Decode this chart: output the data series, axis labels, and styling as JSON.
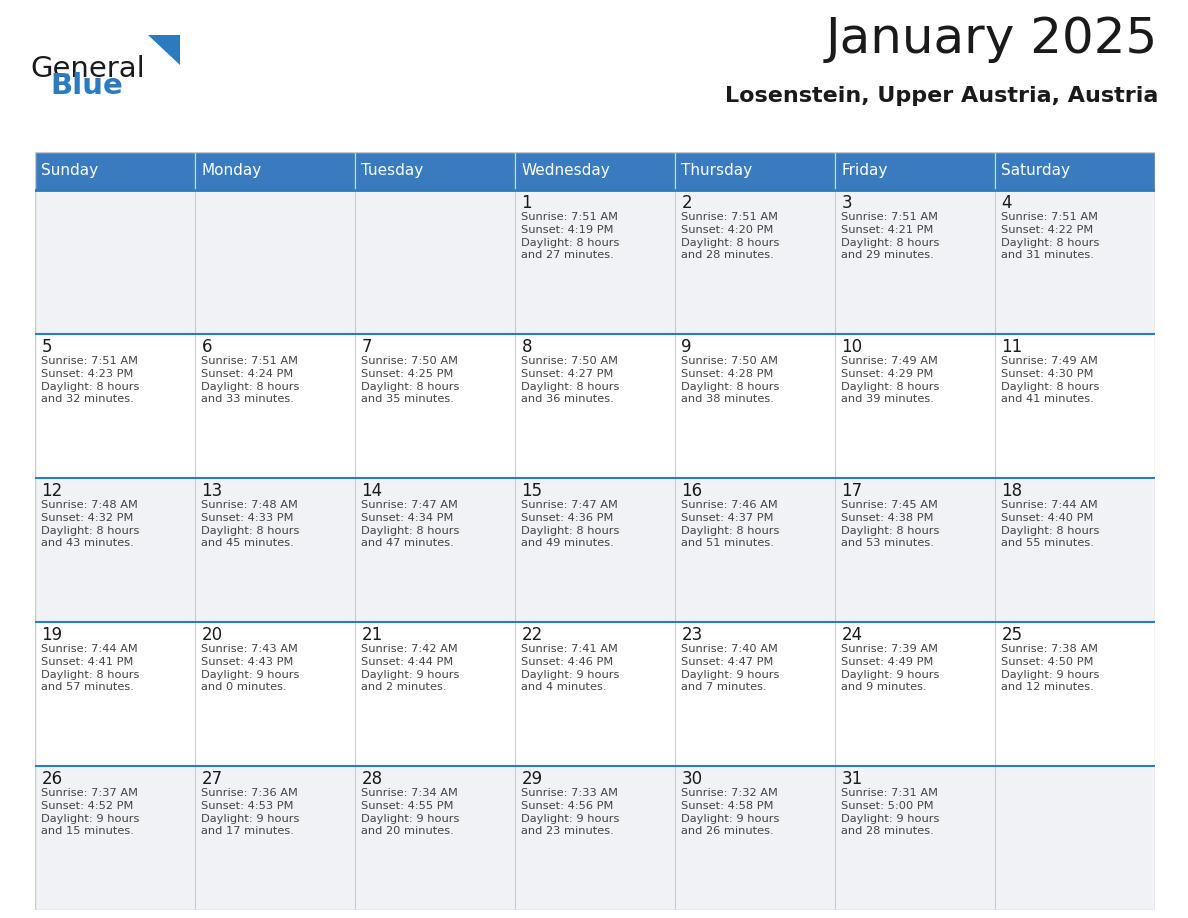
{
  "title": "January 2025",
  "subtitle": "Losenstein, Upper Austria, Austria",
  "header_color": "#3a7bbf",
  "header_text_color": "#ffffff",
  "day_names": [
    "Sunday",
    "Monday",
    "Tuesday",
    "Wednesday",
    "Thursday",
    "Friday",
    "Saturday"
  ],
  "weeks": [
    [
      {
        "day": "",
        "text": ""
      },
      {
        "day": "",
        "text": ""
      },
      {
        "day": "",
        "text": ""
      },
      {
        "day": "1",
        "text": "Sunrise: 7:51 AM\nSunset: 4:19 PM\nDaylight: 8 hours\nand 27 minutes."
      },
      {
        "day": "2",
        "text": "Sunrise: 7:51 AM\nSunset: 4:20 PM\nDaylight: 8 hours\nand 28 minutes."
      },
      {
        "day": "3",
        "text": "Sunrise: 7:51 AM\nSunset: 4:21 PM\nDaylight: 8 hours\nand 29 minutes."
      },
      {
        "day": "4",
        "text": "Sunrise: 7:51 AM\nSunset: 4:22 PM\nDaylight: 8 hours\nand 31 minutes."
      }
    ],
    [
      {
        "day": "5",
        "text": "Sunrise: 7:51 AM\nSunset: 4:23 PM\nDaylight: 8 hours\nand 32 minutes."
      },
      {
        "day": "6",
        "text": "Sunrise: 7:51 AM\nSunset: 4:24 PM\nDaylight: 8 hours\nand 33 minutes."
      },
      {
        "day": "7",
        "text": "Sunrise: 7:50 AM\nSunset: 4:25 PM\nDaylight: 8 hours\nand 35 minutes."
      },
      {
        "day": "8",
        "text": "Sunrise: 7:50 AM\nSunset: 4:27 PM\nDaylight: 8 hours\nand 36 minutes."
      },
      {
        "day": "9",
        "text": "Sunrise: 7:50 AM\nSunset: 4:28 PM\nDaylight: 8 hours\nand 38 minutes."
      },
      {
        "day": "10",
        "text": "Sunrise: 7:49 AM\nSunset: 4:29 PM\nDaylight: 8 hours\nand 39 minutes."
      },
      {
        "day": "11",
        "text": "Sunrise: 7:49 AM\nSunset: 4:30 PM\nDaylight: 8 hours\nand 41 minutes."
      }
    ],
    [
      {
        "day": "12",
        "text": "Sunrise: 7:48 AM\nSunset: 4:32 PM\nDaylight: 8 hours\nand 43 minutes."
      },
      {
        "day": "13",
        "text": "Sunrise: 7:48 AM\nSunset: 4:33 PM\nDaylight: 8 hours\nand 45 minutes."
      },
      {
        "day": "14",
        "text": "Sunrise: 7:47 AM\nSunset: 4:34 PM\nDaylight: 8 hours\nand 47 minutes."
      },
      {
        "day": "15",
        "text": "Sunrise: 7:47 AM\nSunset: 4:36 PM\nDaylight: 8 hours\nand 49 minutes."
      },
      {
        "day": "16",
        "text": "Sunrise: 7:46 AM\nSunset: 4:37 PM\nDaylight: 8 hours\nand 51 minutes."
      },
      {
        "day": "17",
        "text": "Sunrise: 7:45 AM\nSunset: 4:38 PM\nDaylight: 8 hours\nand 53 minutes."
      },
      {
        "day": "18",
        "text": "Sunrise: 7:44 AM\nSunset: 4:40 PM\nDaylight: 8 hours\nand 55 minutes."
      }
    ],
    [
      {
        "day": "19",
        "text": "Sunrise: 7:44 AM\nSunset: 4:41 PM\nDaylight: 8 hours\nand 57 minutes."
      },
      {
        "day": "20",
        "text": "Sunrise: 7:43 AM\nSunset: 4:43 PM\nDaylight: 9 hours\nand 0 minutes."
      },
      {
        "day": "21",
        "text": "Sunrise: 7:42 AM\nSunset: 4:44 PM\nDaylight: 9 hours\nand 2 minutes."
      },
      {
        "day": "22",
        "text": "Sunrise: 7:41 AM\nSunset: 4:46 PM\nDaylight: 9 hours\nand 4 minutes."
      },
      {
        "day": "23",
        "text": "Sunrise: 7:40 AM\nSunset: 4:47 PM\nDaylight: 9 hours\nand 7 minutes."
      },
      {
        "day": "24",
        "text": "Sunrise: 7:39 AM\nSunset: 4:49 PM\nDaylight: 9 hours\nand 9 minutes."
      },
      {
        "day": "25",
        "text": "Sunrise: 7:38 AM\nSunset: 4:50 PM\nDaylight: 9 hours\nand 12 minutes."
      }
    ],
    [
      {
        "day": "26",
        "text": "Sunrise: 7:37 AM\nSunset: 4:52 PM\nDaylight: 9 hours\nand 15 minutes."
      },
      {
        "day": "27",
        "text": "Sunrise: 7:36 AM\nSunset: 4:53 PM\nDaylight: 9 hours\nand 17 minutes."
      },
      {
        "day": "28",
        "text": "Sunrise: 7:34 AM\nSunset: 4:55 PM\nDaylight: 9 hours\nand 20 minutes."
      },
      {
        "day": "29",
        "text": "Sunrise: 7:33 AM\nSunset: 4:56 PM\nDaylight: 9 hours\nand 23 minutes."
      },
      {
        "day": "30",
        "text": "Sunrise: 7:32 AM\nSunset: 4:58 PM\nDaylight: 9 hours\nand 26 minutes."
      },
      {
        "day": "31",
        "text": "Sunrise: 7:31 AM\nSunset: 5:00 PM\nDaylight: 9 hours\nand 28 minutes."
      },
      {
        "day": "",
        "text": ""
      }
    ]
  ],
  "logo_text1": "General",
  "logo_text2": "Blue",
  "logo_color1": "#1a1a1a",
  "logo_color2": "#2a7bbf",
  "logo_triangle_color": "#2a7bbf",
  "cell_colors": [
    "#f0f2f5",
    "#ffffff"
  ],
  "grid_color": "#c8c8c8",
  "day_num_color": "#1a1a1a",
  "cell_text_color": "#444444"
}
